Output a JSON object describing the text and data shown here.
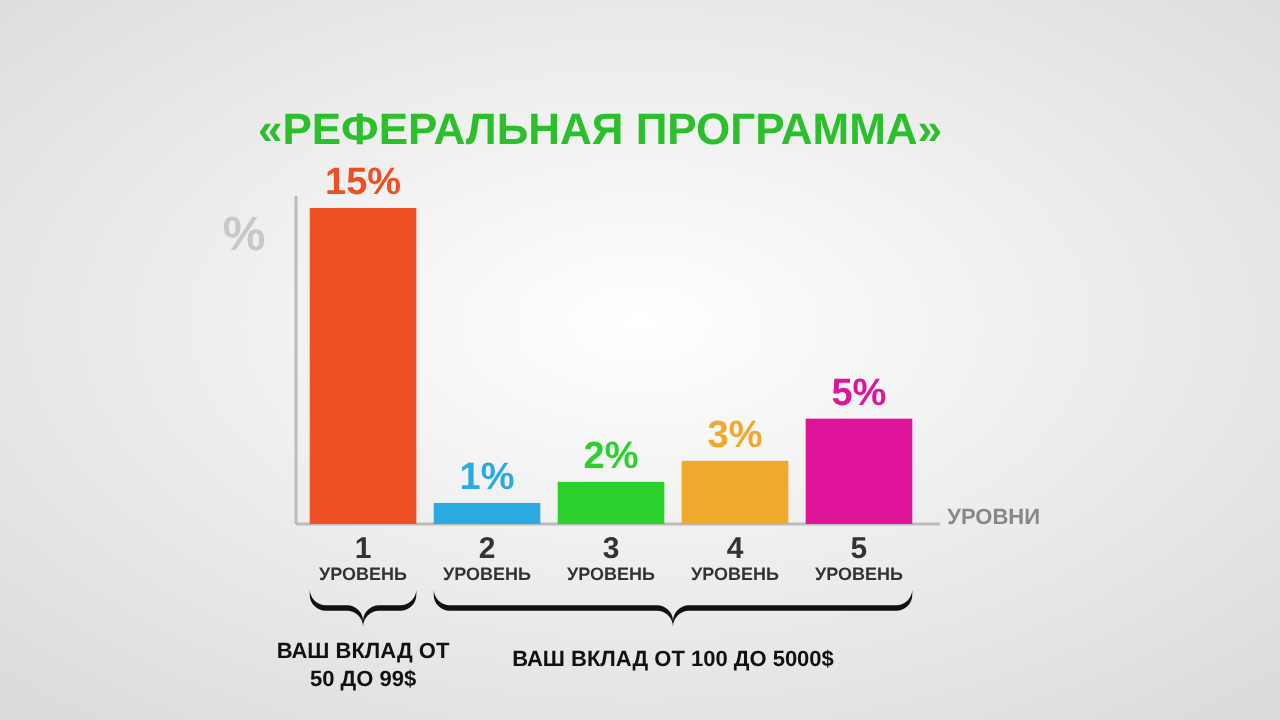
{
  "chart_data": {
    "type": "bar",
    "title": "«РЕФЕРАЛЬНАЯ ПРОГРАММА»",
    "ylabel": "%",
    "xlabel": "УРОВНИ",
    "categories": [
      "1 УРОВЕНЬ",
      "2 УРОВЕНЬ",
      "3 УРОВЕНЬ",
      "4 УРОВЕНЬ",
      "5 УРОВЕНЬ"
    ],
    "values": [
      15,
      1,
      2,
      3,
      5
    ],
    "colors": [
      "#f04e23",
      "#29abe2",
      "#2bd02b",
      "#f0a92a",
      "#e0149b"
    ],
    "value_labels": [
      "15%",
      "1%",
      "2%",
      "3%",
      "5%"
    ],
    "annotations": [
      "ВАШ ВКЛАД ОТ 50 ДО 99$",
      "ВАШ ВКЛАД ОТ 100 ДО 5000$"
    ]
  }
}
